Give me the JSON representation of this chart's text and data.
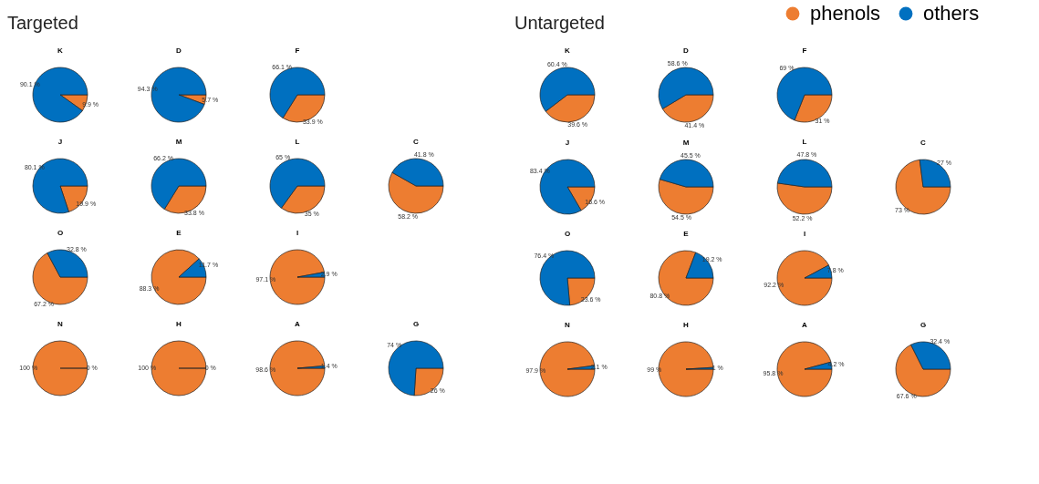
{
  "chart_data": [
    {
      "type": "other",
      "title": "Targeted"
    },
    {
      "type": "pie",
      "title": "K",
      "categories": [
        "phenols",
        "others"
      ],
      "values": [
        9.9,
        90.1
      ],
      "value_labels": [
        "9.9 %",
        "90.1 %"
      ],
      "colors": [
        "#ed7d31",
        "#0070c0"
      ],
      "legend": "top right"
    },
    {
      "type": "pie",
      "title": "D",
      "categories": [
        null,
        null
      ],
      "values": [
        5.7,
        94.3
      ],
      "value_labels": [
        "5.7 %",
        "94.3 %"
      ],
      "colors": [
        "#ed7d31",
        "#0070c0"
      ]
    },
    {
      "type": "pie",
      "title": "F",
      "categories": [
        null,
        null
      ],
      "values": [
        33.9,
        66.1
      ],
      "value_labels": [
        "33.9 %",
        "66.1 %"
      ],
      "colors": [
        "#ed7d31",
        "#0070c0"
      ]
    },
    {
      "type": "pie",
      "title": "J",
      "categories": [
        null,
        null
      ],
      "values": [
        19.9,
        80.1
      ],
      "value_labels": [
        "19.9 %",
        "80.1 %"
      ],
      "colors": [
        "#ed7d31",
        "#0070c0"
      ]
    },
    {
      "type": "pie",
      "title": "M",
      "categories": [
        null,
        null
      ],
      "values": [
        33.8,
        66.2
      ],
      "value_labels": [
        "33.8 %",
        "66.2 %"
      ],
      "colors": [
        "#ed7d31",
        "#0070c0"
      ]
    },
    {
      "type": "pie",
      "title": "L",
      "categories": [
        null,
        null
      ],
      "values": [
        35,
        65
      ],
      "value_labels": [
        "35 %",
        "65 %"
      ],
      "colors": [
        "#ed7d31",
        "#0070c0"
      ]
    },
    {
      "type": "pie",
      "title": "C",
      "categories": [
        null,
        null
      ],
      "values": [
        58.2,
        41.8
      ],
      "value_labels": [
        "58.2 %",
        "41.8 %"
      ],
      "colors": [
        "#ed7d31",
        "#0070c0"
      ]
    },
    {
      "type": "pie",
      "title": "O",
      "categories": [
        null,
        null
      ],
      "values": [
        67.2,
        32.8
      ],
      "value_labels": [
        "67.2 %",
        "32.8 %"
      ],
      "colors": [
        "#ed7d31",
        "#0070c0"
      ]
    },
    {
      "type": "pie",
      "title": "E",
      "categories": [
        null,
        null
      ],
      "values": [
        88.3,
        11.7
      ],
      "value_labels": [
        "88.3 %",
        "11.7 %"
      ],
      "colors": [
        "#ed7d31",
        "#0070c0"
      ]
    },
    {
      "type": "pie",
      "title": "I",
      "categories": [
        null,
        null
      ],
      "values": [
        97.1,
        2.9
      ],
      "value_labels": [
        "97.1 %",
        "2.9 %"
      ],
      "colors": [
        "#ed7d31",
        "#0070c0"
      ]
    },
    {
      "type": "pie",
      "title": "N",
      "categories": [
        null,
        null
      ],
      "values": [
        100,
        0
      ],
      "value_labels": [
        "100 %",
        "0 %"
      ],
      "colors": [
        "#ed7d31",
        "#0070c0"
      ]
    },
    {
      "type": "pie",
      "title": "H",
      "categories": [
        null,
        null
      ],
      "values": [
        100,
        0
      ],
      "value_labels": [
        "100 %",
        "0 %"
      ],
      "colors": [
        "#ed7d31",
        "#0070c0"
      ]
    },
    {
      "type": "pie",
      "title": "A",
      "categories": [
        null,
        null
      ],
      "values": [
        98.6,
        1.4
      ],
      "value_labels": [
        "98.6 %",
        "1.4 %"
      ],
      "colors": [
        "#ed7d31",
        "#0070c0"
      ]
    },
    {
      "type": "pie",
      "title": "G",
      "categories": [
        null,
        null
      ],
      "values": [
        26,
        74
      ],
      "value_labels": [
        "26 %",
        "74 %"
      ],
      "colors": [
        "#ed7d31",
        "#0070c0"
      ]
    },
    {
      "type": "other",
      "title": "Untargeted"
    },
    {
      "type": "pie",
      "title": "K",
      "categories": [
        null,
        null
      ],
      "values": [
        39.6,
        60.4
      ],
      "value_labels": [
        "39.6 %",
        "60.4 %"
      ],
      "colors": [
        "#ed7d31",
        "#0070c0"
      ]
    },
    {
      "type": "pie",
      "title": "D",
      "categories": [
        null,
        null
      ],
      "values": [
        41.4,
        58.6
      ],
      "value_labels": [
        "41.4 %",
        "58.6 %"
      ],
      "colors": [
        "#ed7d31",
        "#0070c0"
      ]
    },
    {
      "type": "pie",
      "title": "F",
      "categories": [
        null,
        null
      ],
      "values": [
        31,
        69
      ],
      "value_labels": [
        "31 %",
        "69 %"
      ],
      "colors": [
        "#ed7d31",
        "#0070c0"
      ]
    },
    {
      "type": "pie",
      "title": "J",
      "categories": [
        null,
        null
      ],
      "values": [
        16.6,
        83.4
      ],
      "value_labels": [
        "16.6 %",
        "83.4 %"
      ],
      "colors": [
        "#ed7d31",
        "#0070c0"
      ]
    },
    {
      "type": "pie",
      "title": "M",
      "categories": [
        null,
        null
      ],
      "values": [
        54.5,
        45.5
      ],
      "value_labels": [
        "54.5 %",
        "45.5 %"
      ],
      "colors": [
        "#ed7d31",
        "#0070c0"
      ]
    },
    {
      "type": "pie",
      "title": "L",
      "categories": [
        null,
        null
      ],
      "values": [
        52.2,
        47.8
      ],
      "value_labels": [
        "52.2 %",
        "47.8 %"
      ],
      "colors": [
        "#ed7d31",
        "#0070c0"
      ]
    },
    {
      "type": "pie",
      "title": "C",
      "categories": [
        null,
        null
      ],
      "values": [
        73,
        27
      ],
      "value_labels": [
        "73 %",
        "27 %"
      ],
      "colors": [
        "#ed7d31",
        "#0070c0"
      ]
    },
    {
      "type": "pie",
      "title": "O",
      "categories": [
        null,
        null
      ],
      "values": [
        23.6,
        76.4
      ],
      "value_labels": [
        "23.6 %",
        "76.4 %"
      ],
      "colors": [
        "#ed7d31",
        "#0070c0"
      ]
    },
    {
      "type": "pie",
      "title": "E",
      "categories": [
        null,
        null
      ],
      "values": [
        80.8,
        19.2
      ],
      "value_labels": [
        "80.8 %",
        "19.2 %"
      ],
      "colors": [
        "#ed7d31",
        "#0070c0"
      ]
    },
    {
      "type": "pie",
      "title": "I",
      "categories": [
        null,
        null
      ],
      "values": [
        92.2,
        7.8
      ],
      "value_labels": [
        "92.2 %",
        "7.8 %"
      ],
      "colors": [
        "#ed7d31",
        "#0070c0"
      ]
    },
    {
      "type": "pie",
      "title": "N",
      "categories": [
        null,
        null
      ],
      "values": [
        97.9,
        2.1
      ],
      "value_labels": [
        "97.9 %",
        "2.1 %"
      ],
      "colors": [
        "#ed7d31",
        "#0070c0"
      ]
    },
    {
      "type": "pie",
      "title": "H",
      "categories": [
        null,
        null
      ],
      "values": [
        99,
        1
      ],
      "value_labels": [
        "99 %",
        "1 %"
      ],
      "colors": [
        "#ed7d31",
        "#0070c0"
      ]
    },
    {
      "type": "pie",
      "title": "A",
      "categories": [
        null,
        null
      ],
      "values": [
        95.8,
        4.2
      ],
      "value_labels": [
        "95.8 %",
        "4.2 %"
      ],
      "colors": [
        "#ed7d31",
        "#0070c0"
      ]
    },
    {
      "type": "pie",
      "title": "G",
      "categories": [
        null,
        null
      ],
      "values": [
        67.6,
        32.4
      ],
      "value_labels": [
        "67.6 %",
        "32.4 %"
      ],
      "colors": [
        "#ed7d31",
        "#0070c0"
      ]
    }
  ]
}
